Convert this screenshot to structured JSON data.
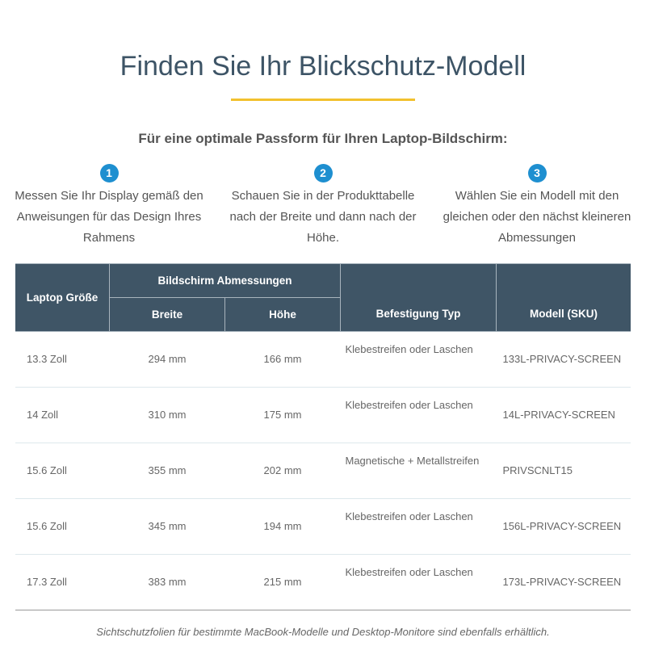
{
  "title": "Finden Sie Ihr Blickschutz-Modell",
  "subtitle": "Für eine optimale Passform für Ihren Laptop-Bildschirm:",
  "steps": [
    {
      "num": "1",
      "text": "Messen Sie Ihr Display gemäß den Anweisungen für das Design Ihres Rahmens"
    },
    {
      "num": "2",
      "text": "Schauen Sie in der Produkttabelle nach der Breite und dann nach der Höhe."
    },
    {
      "num": "3",
      "text": "Wählen Sie ein Modell mit den gleichen oder den nächst kleineren Abmessungen"
    }
  ],
  "table": {
    "headers": {
      "size": "Laptop Größe",
      "dims": "Bildschirm Abmessungen",
      "width": "Breite",
      "height": "Höhe",
      "mount": "Befestigung Typ",
      "sku": "Modell (SKU)"
    },
    "rows": [
      [
        "13.3 Zoll",
        "294 mm",
        "166 mm",
        "Klebestreifen oder Laschen",
        "133L-PRIVACY-SCREEN"
      ],
      [
        "14 Zoll",
        "310 mm",
        "175 mm",
        "Klebestreifen oder Laschen",
        "14L-PRIVACY-SCREEN"
      ],
      [
        "15.6 Zoll",
        "355 mm",
        "202 mm",
        "Magnetische + Metallstreifen",
        "PRIVSCNLT15"
      ],
      [
        "15.6 Zoll",
        "345 mm",
        "194 mm",
        "Klebestreifen oder Laschen",
        "156L-PRIVACY-SCREEN"
      ],
      [
        "17.3 Zoll",
        "383 mm",
        "215 mm",
        "Klebestreifen oder Laschen",
        "173L-PRIVACY-SCREEN"
      ]
    ]
  },
  "note": "Sichtschutzfolien für bestimmte MacBook-Modelle und Desktop-Monitore sind ebenfalls erhältlich.",
  "colors": {
    "header": "#3f5566",
    "accent": "#f2c12e",
    "step": "#1e8fd0"
  }
}
